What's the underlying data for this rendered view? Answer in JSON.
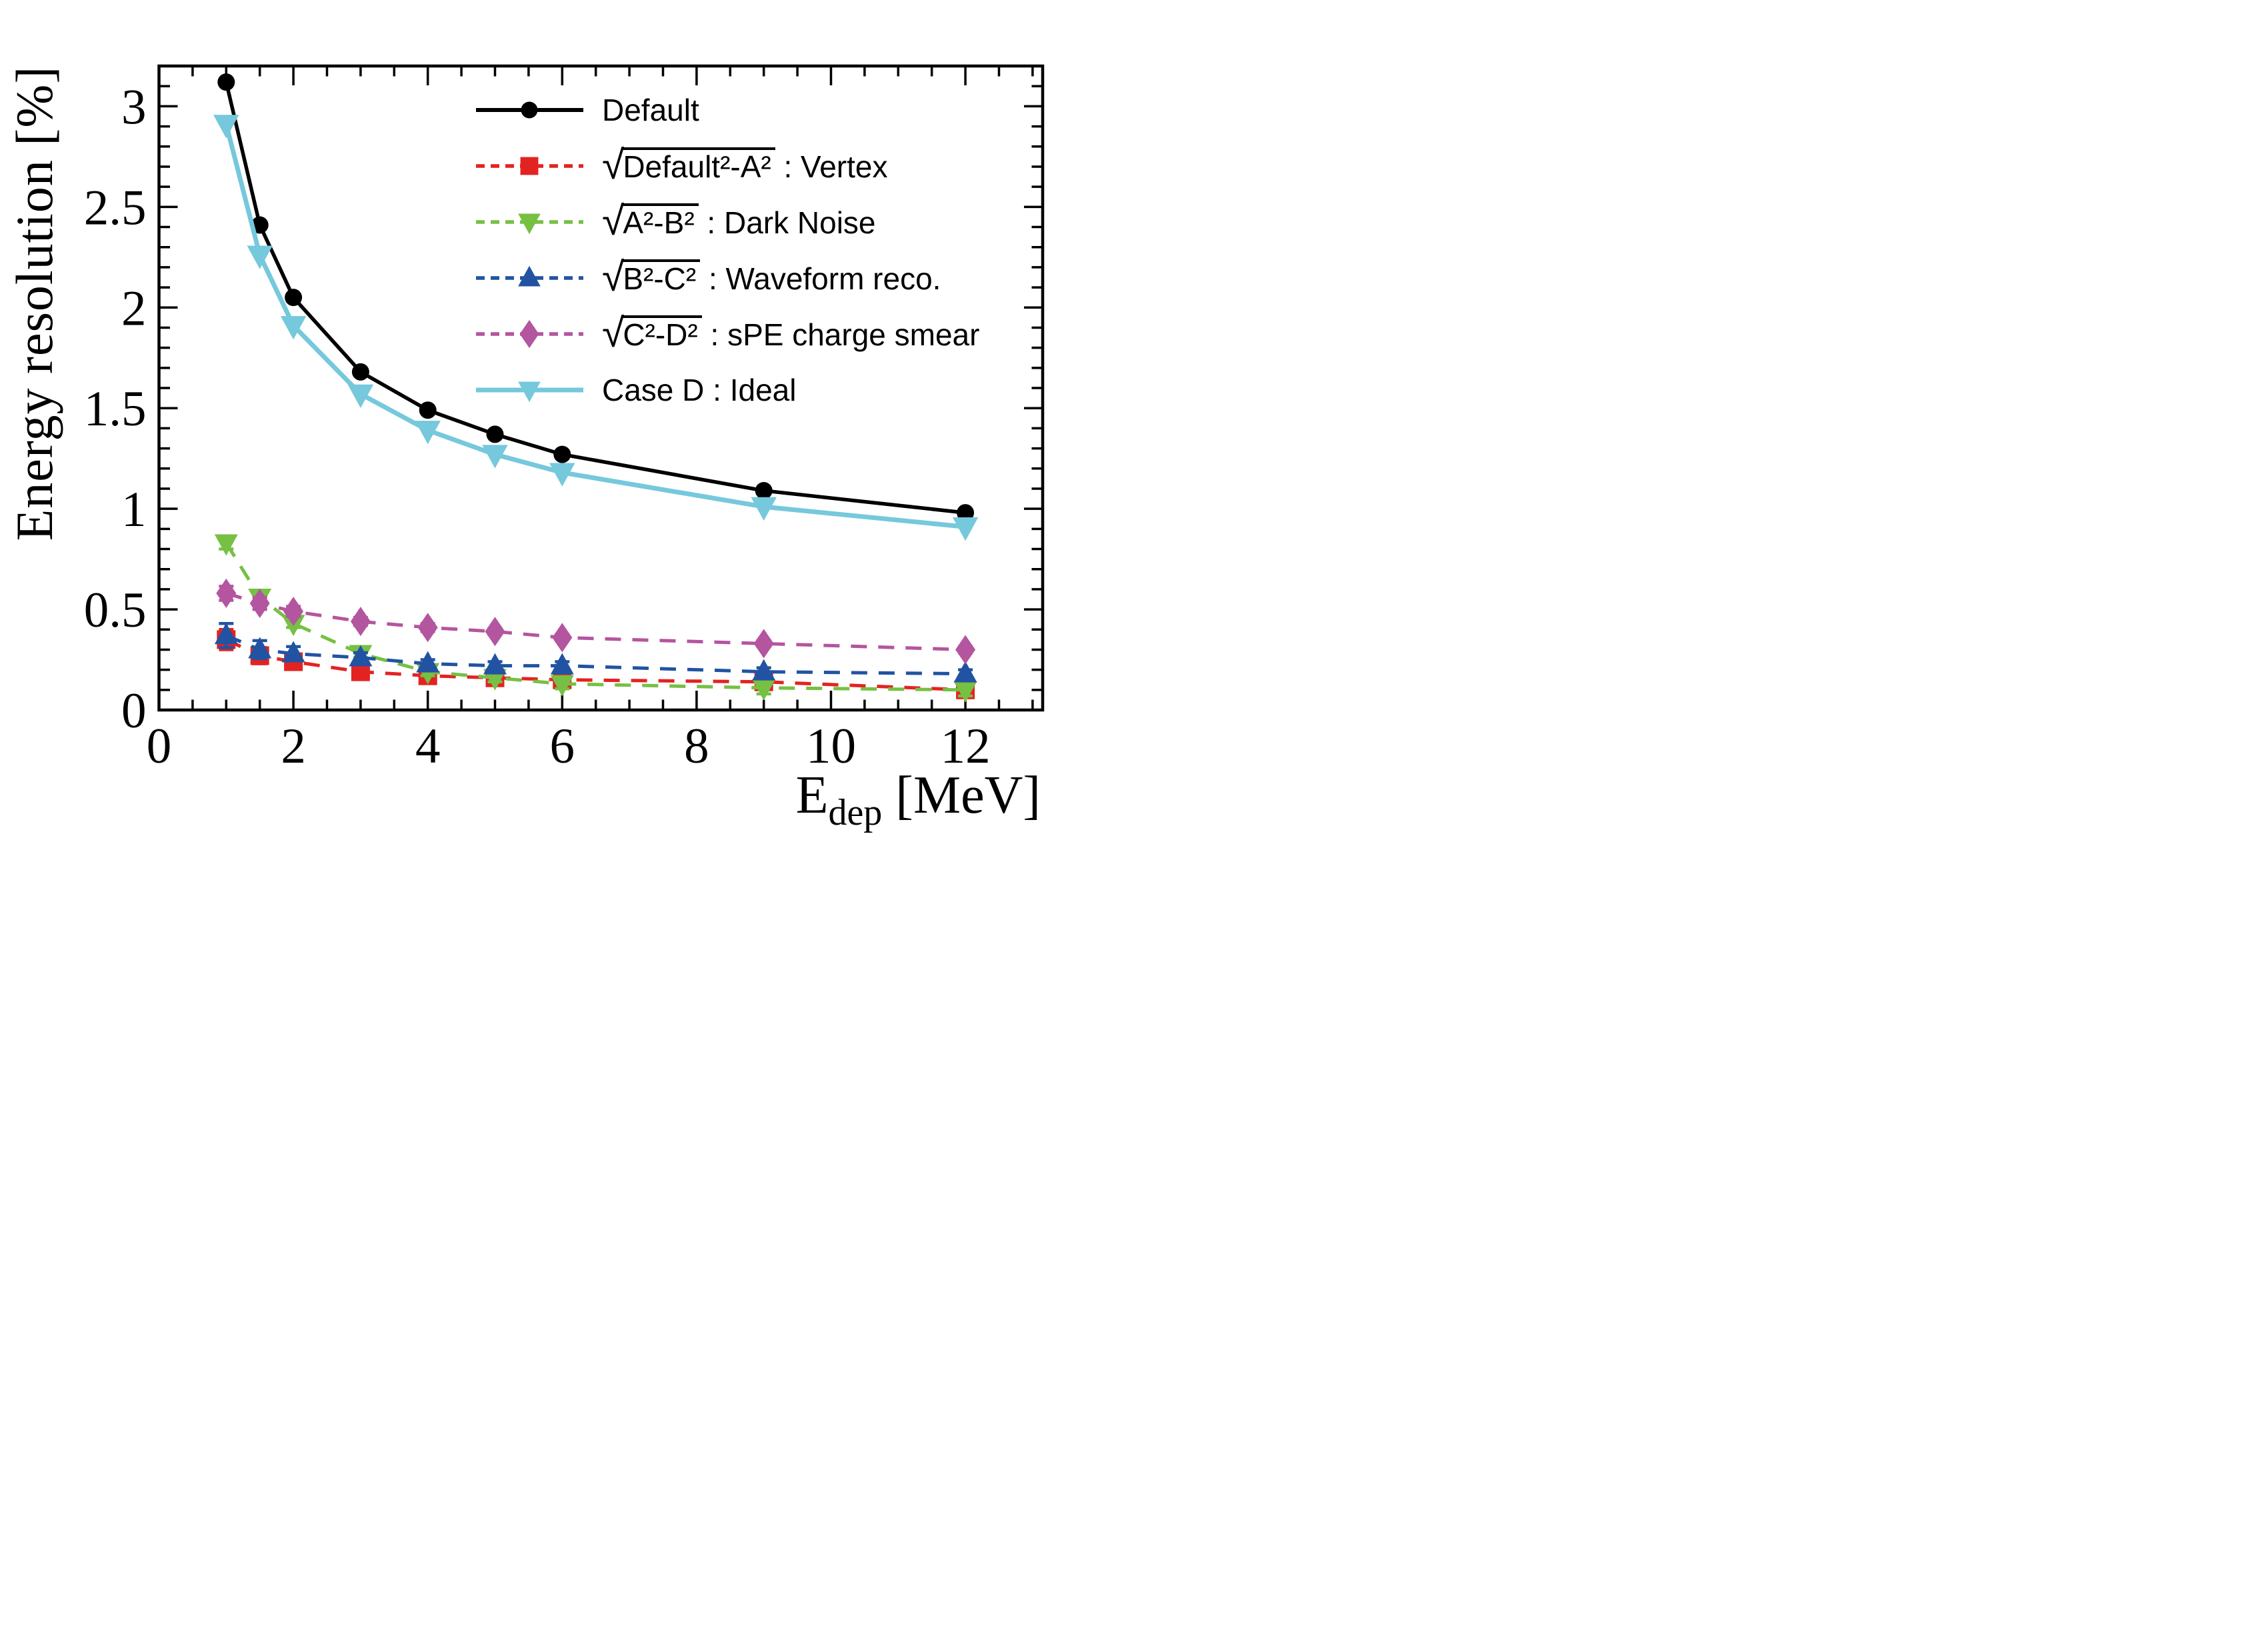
{
  "figure": {
    "background": "#ffffff"
  },
  "chart_data": {
    "type": "line",
    "title": "",
    "ylabel": "Energy resolution [%]",
    "xlabel_main": "E",
    "xlabel_sub": "dep",
    "xlabel_rest": " [MeV]",
    "xlim": [
      0,
      13.15
    ],
    "ylim": [
      0,
      3.2
    ],
    "x_major_ticks": [
      0,
      2,
      4,
      6,
      8,
      10,
      12
    ],
    "x_tick_labels": [
      "0",
      "2",
      "4",
      "6",
      "8",
      "10",
      "12"
    ],
    "x_minor_step": 0.5,
    "y_major_ticks": [
      0,
      0.5,
      1,
      1.5,
      2,
      2.5,
      3
    ],
    "y_tick_labels": [
      "0",
      "0.5",
      "1",
      "1.5",
      "2",
      "2.5",
      "3"
    ],
    "y_minor_step": 0.1,
    "grid": "off",
    "legend_position": "upper-center-right, no frame",
    "x": [
      1,
      1.5,
      2,
      3,
      4,
      5,
      6,
      9,
      12
    ],
    "series": [
      {
        "key": "default",
        "name": "Default",
        "legend": {
          "sqrt_prefix": false,
          "text": "Default"
        },
        "color": "#000000",
        "line": "solid",
        "marker": "circle",
        "values": [
          3.12,
          2.41,
          2.05,
          1.68,
          1.49,
          1.37,
          1.27,
          1.09,
          0.98
        ],
        "errors": [
          0,
          0,
          0,
          0,
          0,
          0,
          0,
          0,
          0
        ]
      },
      {
        "key": "vertex",
        "name": "sqrt(Default^2 - A^2) : Vertex",
        "legend": {
          "sqrt_prefix": true,
          "radicand": "Default²-A²",
          "suffix": " : Vertex"
        },
        "color": "#e32322",
        "line": "dashed",
        "marker": "square",
        "values": [
          0.35,
          0.27,
          0.24,
          0.19,
          0.17,
          0.16,
          0.15,
          0.14,
          0.1
        ],
        "errors": [
          0.05,
          0.04,
          0.035,
          0.03,
          0.025,
          0.02,
          0.02,
          0.02,
          0.02
        ]
      },
      {
        "key": "dark-noise",
        "name": "sqrt(A^2 - B^2) : Dark Noise",
        "legend": {
          "sqrt_prefix": true,
          "radicand": "A²-B²",
          "suffix": " : Dark Noise"
        },
        "color": "#76c043",
        "line": "dashed",
        "marker": "triangle-down",
        "values": [
          0.83,
          0.56,
          0.43,
          0.28,
          0.19,
          0.16,
          0.13,
          0.11,
          0.1
        ],
        "errors": [
          0.03,
          0.025,
          0.02,
          0.02,
          0.02,
          0.02,
          0.025,
          0.03,
          0.03
        ]
      },
      {
        "key": "waveform-reco",
        "name": "sqrt(B^2 - C^2) : Waveform reco.",
        "legend": {
          "sqrt_prefix": true,
          "radicand": "B²-C²",
          "suffix": " : Waveform reco."
        },
        "color": "#2253a2",
        "line": "dashed",
        "marker": "triangle-up",
        "values": [
          0.37,
          0.3,
          0.28,
          0.26,
          0.23,
          0.22,
          0.22,
          0.19,
          0.18
        ],
        "errors": [
          0.06,
          0.045,
          0.035,
          0.025,
          0.02,
          0.02,
          0.02,
          0.02,
          0.02
        ]
      },
      {
        "key": "spe-charge-smear",
        "name": "sqrt(C^2 - D^2) : sPE charge smear",
        "legend": {
          "sqrt_prefix": true,
          "radicand": "C²-D²",
          "suffix": " : sPE charge smear"
        },
        "color": "#b4559f",
        "line": "dashed",
        "marker": "diamond",
        "values": [
          0.58,
          0.53,
          0.49,
          0.44,
          0.41,
          0.39,
          0.36,
          0.33,
          0.3
        ],
        "errors": [
          0.035,
          0.03,
          0.025,
          0.02,
          0.02,
          0.015,
          0.015,
          0.015,
          0.015
        ]
      },
      {
        "key": "case-d-ideal",
        "name": "Case D : Ideal",
        "legend": {
          "sqrt_prefix": false,
          "text": "Case D : Ideal"
        },
        "color": "#76c8dc",
        "line": "solid",
        "marker": "triangle-down",
        "values": [
          2.91,
          2.26,
          1.91,
          1.57,
          1.39,
          1.27,
          1.18,
          1.01,
          0.91
        ],
        "errors": [
          0,
          0,
          0,
          0,
          0,
          0,
          0,
          0,
          0
        ]
      }
    ]
  }
}
